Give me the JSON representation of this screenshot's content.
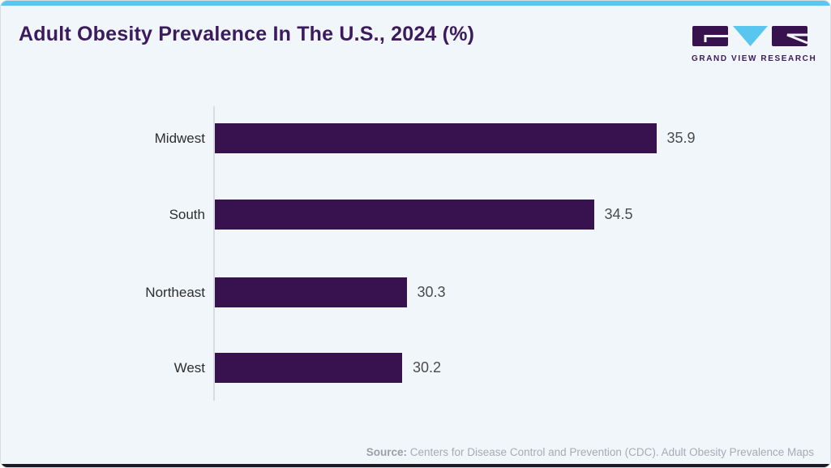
{
  "card": {
    "title": "Adult Obesity Prevalence In The U.S., 2024 (%)",
    "accent_color": "#58c6ee",
    "bottom_bar_color": "#1c1826",
    "background_color": "#f1f6fa"
  },
  "logo": {
    "text": "GRAND VIEW RESEARCH",
    "purple": "#38124f",
    "cyan": "#58c6ee"
  },
  "chart_data": {
    "type": "bar",
    "orientation": "horizontal",
    "title": "Adult Obesity Prevalence In The U.S., 2024 (%)",
    "categories": [
      "Midwest",
      "South",
      "Northeast",
      "West"
    ],
    "values": [
      35.9,
      34.5,
      30.3,
      30.2
    ],
    "value_labels": [
      "35.9",
      "34.5",
      "30.3",
      "30.2"
    ],
    "xlabel": "",
    "ylabel": "",
    "xlim": [
      26,
      36
    ],
    "bar_color": "#38124f",
    "grid": false,
    "legend": false
  },
  "source": {
    "label": "Source:",
    "text": " Centers for Disease Control and Prevention (CDC). Adult Obesity Prevalence Maps"
  }
}
